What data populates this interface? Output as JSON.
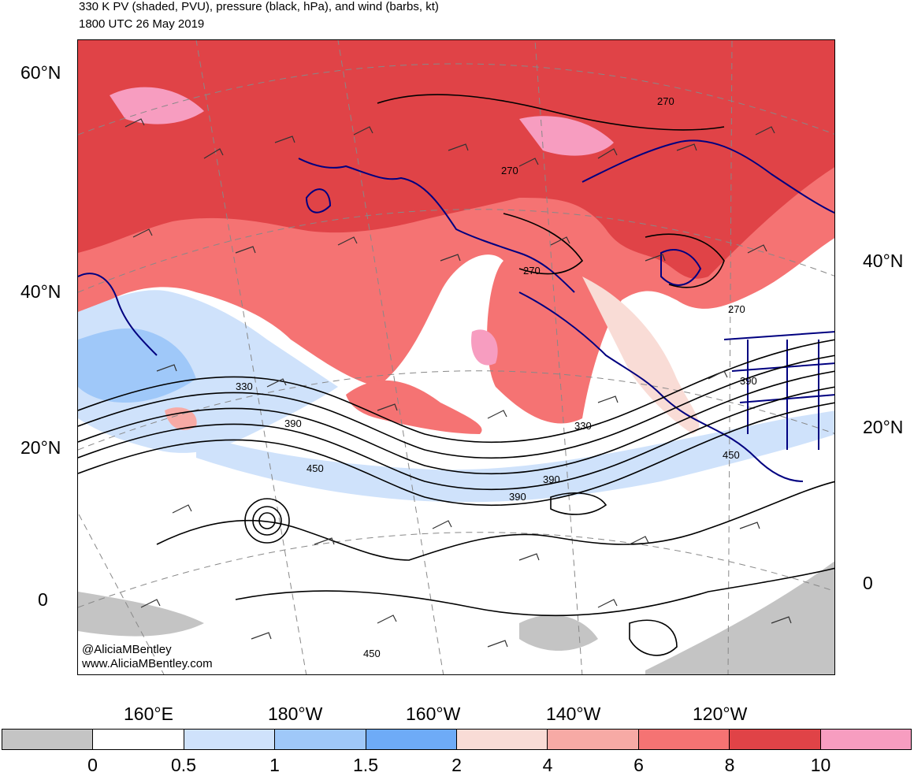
{
  "title_line1": "330 K PV (shaded, PVU), pressure (black, hPa), and wind (barbs, kt)",
  "title_line2": "1800 UTC 26 May 2019",
  "credit_line1": "@AliciaMBentley",
  "credit_line2": "www.AliciaMBentley.com",
  "lat_labels_left": [
    "60°N",
    "40°N",
    "20°N",
    "0"
  ],
  "lat_labels_right": [
    "40°N",
    "20°N",
    "0"
  ],
  "lon_labels": [
    "160°E",
    "180°W",
    "160°W",
    "140°W",
    "120°W"
  ],
  "contour_labels": [
    "270",
    "270",
    "270",
    "270",
    "330",
    "390",
    "450",
    "330",
    "390",
    "390",
    "450",
    "390",
    "450"
  ],
  "colorbar": {
    "levels": [
      "0",
      "0.5",
      "1",
      "1.5",
      "2",
      "4",
      "6",
      "8",
      "10"
    ],
    "colors": [
      "#c4c4c4",
      "#ffffff",
      "#cfe2fb",
      "#9fc8f9",
      "#6eabf7",
      "#f9dcd6",
      "#f7aaa5",
      "#f57373",
      "#e04347",
      "#f79dc0"
    ]
  },
  "colors": {
    "pv_high_red": "#e04347",
    "pv_mid_red": "#f57373",
    "pv_low_pink": "#f9dcd6",
    "pv_magenta": "#f79dc0",
    "pv_blue": "#9fc8f9",
    "pv_light_blue": "#cfe2fb",
    "coastline": "#000080",
    "contour": "#000000",
    "graticule": "#888888"
  }
}
